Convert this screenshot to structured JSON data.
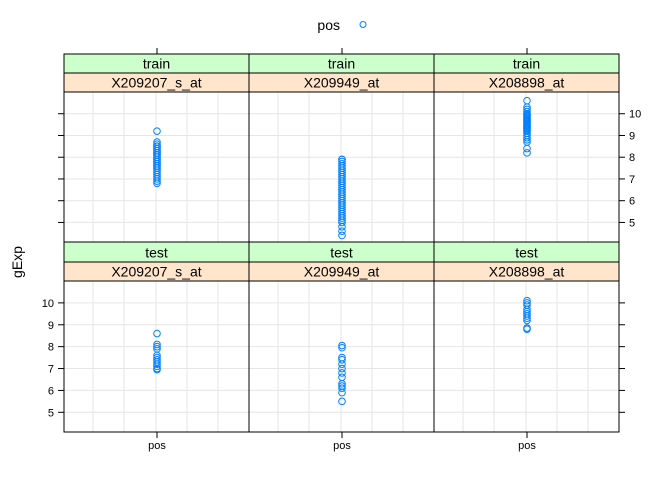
{
  "chart_data": {
    "type": "scatter",
    "layout": "lattice 3 columns x 2 rows",
    "legend": {
      "entries": [
        "pos"
      ],
      "position": "top",
      "color": "#0080ff",
      "marker": "open circle"
    },
    "ylabel": "gExp",
    "xlabel": "",
    "x_categories": [
      "pos"
    ],
    "ylim": [
      4.1,
      11.0
    ],
    "yticks": [
      5,
      6,
      7,
      8,
      9,
      10
    ],
    "grid": true,
    "strip_colors": {
      "outer": "#ccffcc",
      "inner": "#ffe5cc"
    },
    "point_color": "#0080ff",
    "panels": [
      {
        "group": "train",
        "probe": "X209207_s_at",
        "row": "top",
        "column": 1,
        "category": "pos",
        "values": [
          9.2,
          8.7,
          8.6,
          8.5,
          8.5,
          8.4,
          8.4,
          8.3,
          8.3,
          8.2,
          8.2,
          8.1,
          8.1,
          8.0,
          8.0,
          7.9,
          7.9,
          7.8,
          7.8,
          7.7,
          7.7,
          7.6,
          7.6,
          7.5,
          7.5,
          7.4,
          7.3,
          7.2,
          7.1,
          7.0,
          6.9,
          6.8
        ]
      },
      {
        "group": "train",
        "probe": "X209949_at",
        "row": "top",
        "column": 2,
        "category": "pos",
        "values": [
          7.9,
          7.9,
          7.8,
          7.7,
          7.6,
          7.5,
          7.4,
          7.3,
          7.2,
          7.1,
          7.0,
          6.9,
          6.8,
          6.7,
          6.6,
          6.5,
          6.4,
          6.3,
          6.2,
          6.1,
          6.0,
          5.9,
          5.8,
          5.7,
          5.6,
          5.5,
          5.4,
          5.3,
          5.2,
          5.1,
          5.0,
          4.8,
          4.6,
          4.4
        ]
      },
      {
        "group": "train",
        "probe": "X208898_at",
        "row": "top",
        "column": 3,
        "category": "pos",
        "values": [
          10.6,
          10.3,
          10.2,
          10.1,
          10.0,
          9.95,
          9.9,
          9.85,
          9.8,
          9.75,
          9.7,
          9.65,
          9.6,
          9.55,
          9.5,
          9.45,
          9.4,
          9.35,
          9.3,
          9.25,
          9.2,
          9.1,
          9.0,
          8.9,
          8.8,
          8.7,
          8.4,
          8.2
        ]
      },
      {
        "group": "test",
        "probe": "X209207_s_at",
        "row": "bottom",
        "column": 1,
        "category": "pos",
        "values": [
          8.6,
          8.1,
          8.0,
          7.9,
          7.6,
          7.5,
          7.4,
          7.3,
          7.2,
          7.1,
          7.0,
          6.95
        ]
      },
      {
        "group": "test",
        "probe": "X209949_at",
        "row": "bottom",
        "column": 2,
        "category": "pos",
        "values": [
          8.05,
          7.95,
          7.5,
          7.4,
          7.2,
          7.0,
          6.8,
          6.6,
          6.3,
          6.2,
          6.1,
          5.9,
          5.5
        ]
      },
      {
        "group": "test",
        "probe": "X208898_at",
        "row": "bottom",
        "column": 3,
        "category": "pos",
        "values": [
          10.1,
          10.0,
          9.9,
          9.7,
          9.6,
          9.5,
          9.4,
          9.3,
          9.2,
          8.85,
          8.8
        ]
      }
    ]
  }
}
